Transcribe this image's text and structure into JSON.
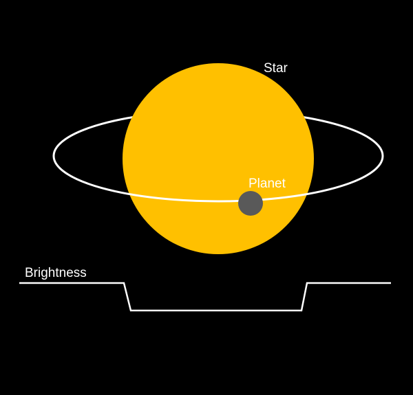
{
  "labels": {
    "star": "Star",
    "planet": "Planet",
    "brightness": "Brightness"
  },
  "colors": {
    "background": "#000000",
    "star": "#FFC000",
    "planet": "#595959",
    "orbit": "#FFFFFF",
    "curve": "#FFFFFF",
    "text": "#FFFFFF"
  }
}
